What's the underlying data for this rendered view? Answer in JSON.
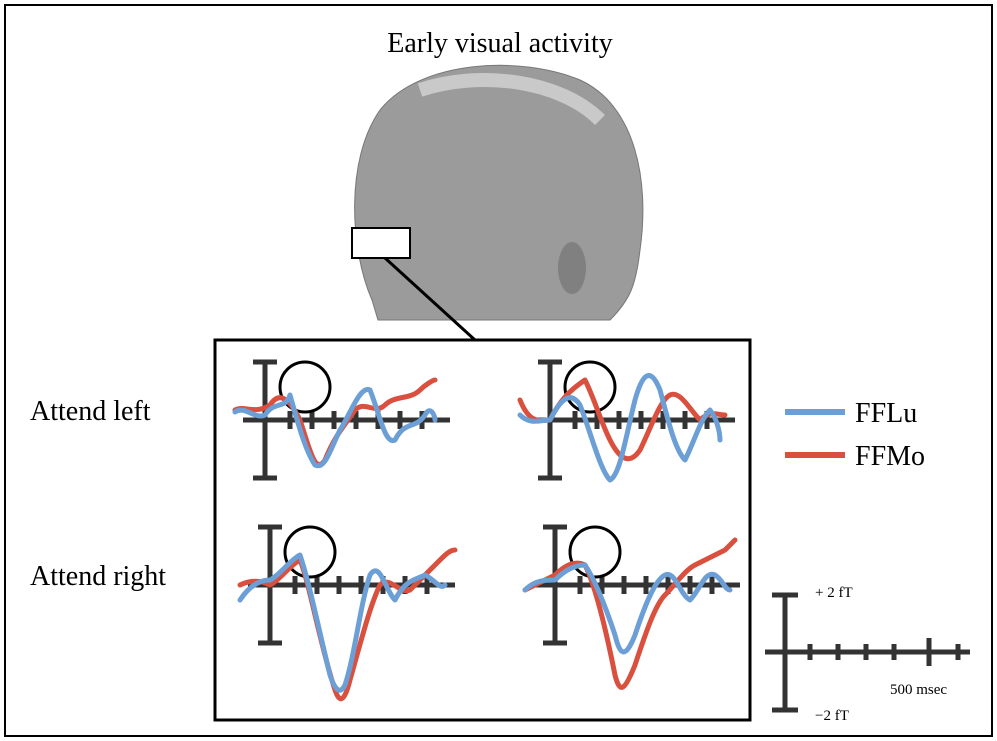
{
  "title": "Early visual activity",
  "rows": [
    {
      "label": "Attend left"
    },
    {
      "label": "Attend right"
    }
  ],
  "legend": [
    {
      "label": "FFLu",
      "color": "#6b9fd6"
    },
    {
      "label": "FFMo",
      "color": "#d9503f"
    }
  ],
  "scale": {
    "top": "+ 2 fT",
    "bottom": "−2 fT",
    "time": "500 msec"
  }
}
